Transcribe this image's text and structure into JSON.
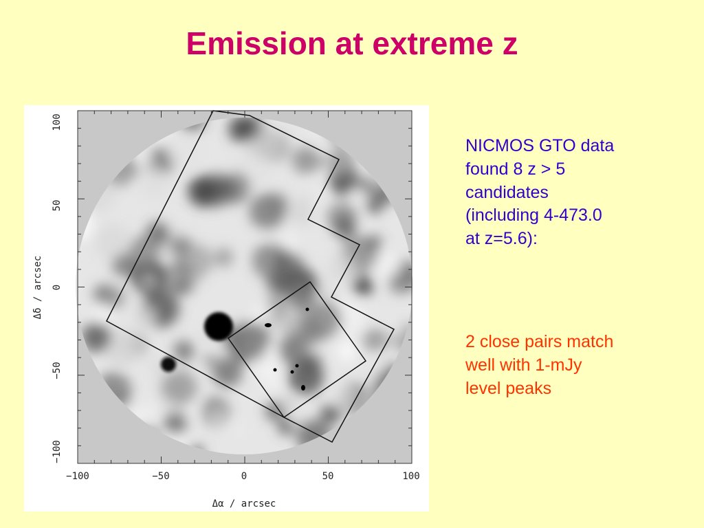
{
  "slide": {
    "title": "Emission at extreme z",
    "bullet_1_lines": [
      "NICMOS GTO data",
      "found 8 z > 5",
      "candidates",
      "(including 4-473.0",
      "at z=5.6):"
    ],
    "bullet_2_lines": [
      "2 close pairs match",
      "well with 1-mJy",
      "level peaks"
    ]
  },
  "figure": {
    "x_axis_label": "Δα / arcsec",
    "y_axis_label": "Δδ / arcsec",
    "x_ticks": [
      "−100",
      "−50",
      "0",
      "50",
      "100"
    ],
    "y_ticks": [
      "100",
      "50",
      "0",
      "−50",
      "−100"
    ],
    "colors": {
      "background": "#c8c8c8",
      "map": "#e6e6e6",
      "outline": "#111111"
    }
  }
}
